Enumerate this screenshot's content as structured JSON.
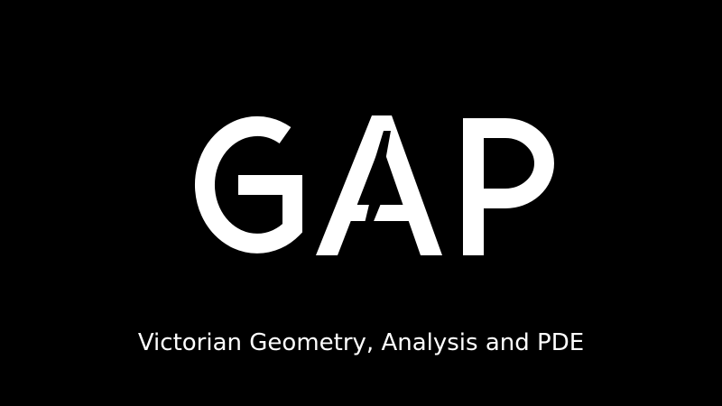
{
  "logo": {
    "wordmark": "GAP",
    "color": "#ffffff",
    "background": "#000000"
  },
  "tagline": "Victorian Geometry, Analysis and PDE"
}
